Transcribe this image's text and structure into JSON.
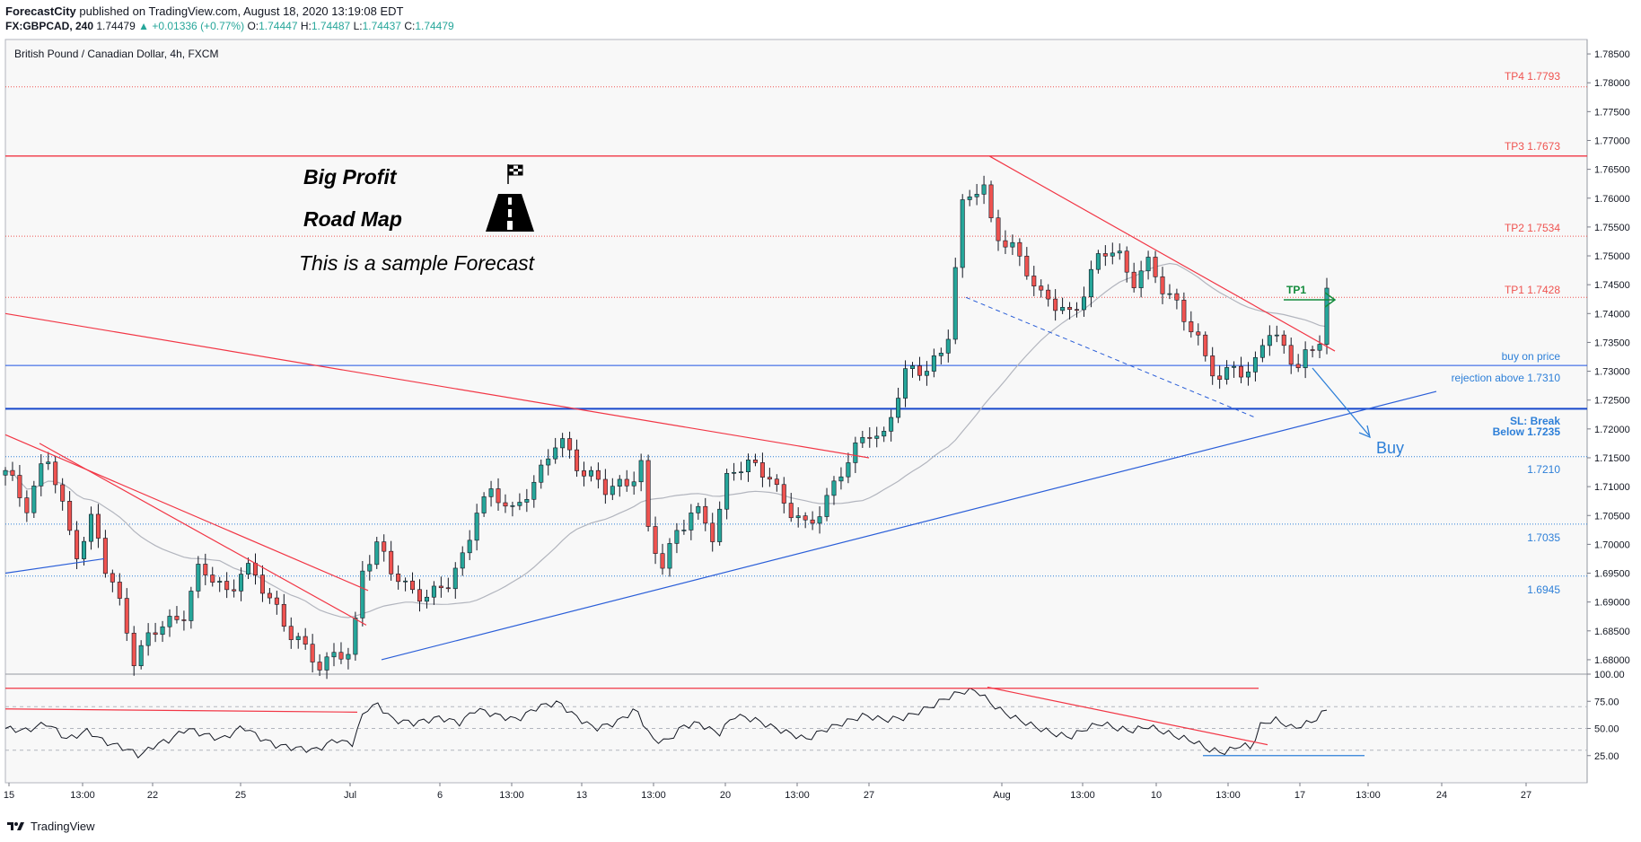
{
  "header": {
    "publisher": "ForecastCity",
    "published_text": "published on TradingView.com, August 18, 2020 13:19:08 EDT",
    "symbol": "FX:GBPCAD, 240",
    "last": "1.74479",
    "change": "+0.01336 (+0.77%)",
    "o": "1.74447",
    "h": "1.74487",
    "l": "1.74437",
    "c": "1.74479"
  },
  "footer": {
    "brand": "TradingView"
  },
  "colors": {
    "up": "#26a69a",
    "down": "#ef5350",
    "red_line": "#f23645",
    "blue_line": "#2962ff",
    "blue_label": "#2d7fd8",
    "green": "#138b3c",
    "ma": "#b2b5be",
    "bg": "#f8f8f8"
  },
  "chart_data": [
    {
      "type": "candlestick",
      "title": "British Pound / Canadian Dollar, 4h, FXCM",
      "ylim": [
        1.6775,
        1.7875
      ],
      "y_ticks": [
        "1.68000",
        "1.68500",
        "1.69000",
        "1.69500",
        "1.70000",
        "1.70500",
        "1.71000",
        "1.71500",
        "1.72000",
        "1.72500",
        "1.73000",
        "1.73500",
        "1.74000",
        "1.74500",
        "1.75000",
        "1.75500",
        "1.76000",
        "1.76500",
        "1.77000",
        "1.77500",
        "1.78000",
        "1.78500"
      ],
      "x_ticks": [
        "15",
        "13:00",
        "22",
        "25",
        "Jul",
        "6",
        "13:00",
        "13",
        "13:00",
        "20",
        "13:00",
        "27",
        "Aug",
        "13:00",
        "10",
        "13:00",
        "17",
        "13:00",
        "24",
        "27"
      ],
      "close_path": [
        [
          0,
          1.712
        ],
        [
          20,
          1.707
        ],
        [
          40,
          1.7155
        ],
        [
          60,
          1.703
        ],
        [
          70,
          1.699
        ],
        [
          85,
          1.705
        ],
        [
          95,
          1.696
        ],
        [
          115,
          1.688
        ],
        [
          125,
          1.68
        ],
        [
          140,
          1.684
        ],
        [
          155,
          1.686
        ],
        [
          175,
          1.689
        ],
        [
          185,
          1.695
        ],
        [
          200,
          1.694
        ],
        [
          215,
          1.692
        ],
        [
          230,
          1.696
        ],
        [
          245,
          1.693
        ],
        [
          260,
          1.69
        ],
        [
          275,
          1.685
        ],
        [
          290,
          1.681
        ],
        [
          305,
          1.679
        ],
        [
          320,
          1.682
        ],
        [
          335,
          1.68
        ],
        [
          345,
          1.695
        ],
        [
          360,
          1.701
        ],
        [
          372,
          1.696
        ],
        [
          390,
          1.691
        ],
        [
          410,
          1.692
        ],
        [
          430,
          1.693
        ],
        [
          445,
          1.698
        ],
        [
          455,
          1.707
        ],
        [
          470,
          1.709
        ],
        [
          490,
          1.705
        ],
        [
          505,
          1.71
        ],
        [
          520,
          1.713
        ],
        [
          535,
          1.718
        ],
        [
          550,
          1.715
        ],
        [
          565,
          1.712
        ],
        [
          580,
          1.709
        ],
        [
          600,
          1.711
        ],
        [
          615,
          1.714
        ],
        [
          622,
          1.701
        ],
        [
          635,
          1.696
        ],
        [
          650,
          1.703
        ],
        [
          665,
          1.706
        ],
        [
          685,
          1.701
        ],
        [
          700,
          1.714
        ],
        [
          720,
          1.713
        ],
        [
          740,
          1.712
        ],
        [
          755,
          1.707
        ],
        [
          775,
          1.702
        ],
        [
          790,
          1.707
        ],
        [
          805,
          1.712
        ],
        [
          820,
          1.715
        ],
        [
          835,
          1.72
        ],
        [
          850,
          1.719
        ],
        [
          860,
          1.724
        ],
        [
          870,
          1.729
        ],
        [
          880,
          1.73
        ],
        [
          895,
          1.732
        ],
        [
          910,
          1.733
        ],
        [
          918,
          1.746
        ],
        [
          925,
          1.758
        ],
        [
          933,
          1.761
        ],
        [
          945,
          1.764
        ],
        [
          952,
          1.756
        ],
        [
          962,
          1.752
        ],
        [
          975,
          1.751
        ],
        [
          990,
          1.748
        ],
        [
          1000,
          1.743
        ],
        [
          1015,
          1.741
        ],
        [
          1030,
          1.74
        ],
        [
          1045,
          1.745
        ],
        [
          1060,
          1.75
        ],
        [
          1075,
          1.751
        ],
        [
          1090,
          1.746
        ],
        [
          1105,
          1.748
        ],
        [
          1120,
          1.744
        ],
        [
          1135,
          1.742
        ],
        [
          1150,
          1.736
        ],
        [
          1162,
          1.731
        ],
        [
          1175,
          1.729
        ],
        [
          1190,
          1.732
        ],
        [
          1200,
          1.728
        ],
        [
          1210,
          1.731
        ],
        [
          1220,
          1.738
        ],
        [
          1235,
          1.735
        ],
        [
          1250,
          1.73
        ],
        [
          1262,
          1.733
        ],
        [
          1270,
          1.735
        ],
        [
          1278,
          1.7448
        ]
      ]
    },
    {
      "type": "line",
      "name": "RSI",
      "ylim": [
        0,
        100
      ],
      "y_ticks": [
        "25.00",
        "50.00",
        "75.00",
        "100.00"
      ],
      "values_path": [
        [
          0,
          50
        ],
        [
          20,
          48
        ],
        [
          40,
          55
        ],
        [
          60,
          40
        ],
        [
          80,
          48
        ],
        [
          95,
          38
        ],
        [
          115,
          32
        ],
        [
          130,
          25
        ],
        [
          145,
          35
        ],
        [
          160,
          40
        ],
        [
          175,
          50
        ],
        [
          190,
          45
        ],
        [
          210,
          40
        ],
        [
          230,
          52
        ],
        [
          245,
          42
        ],
        [
          260,
          35
        ],
        [
          280,
          32
        ],
        [
          300,
          30
        ],
        [
          320,
          40
        ],
        [
          335,
          35
        ],
        [
          348,
          68
        ],
        [
          360,
          72
        ],
        [
          375,
          58
        ],
        [
          395,
          55
        ],
        [
          420,
          60
        ],
        [
          440,
          55
        ],
        [
          455,
          68
        ],
        [
          475,
          62
        ],
        [
          495,
          58
        ],
        [
          515,
          70
        ],
        [
          535,
          74
        ],
        [
          550,
          62
        ],
        [
          570,
          50
        ],
        [
          590,
          55
        ],
        [
          610,
          68
        ],
        [
          625,
          40
        ],
        [
          640,
          38
        ],
        [
          655,
          52
        ],
        [
          670,
          55
        ],
        [
          690,
          45
        ],
        [
          705,
          62
        ],
        [
          725,
          58
        ],
        [
          745,
          50
        ],
        [
          760,
          45
        ],
        [
          775,
          40
        ],
        [
          790,
          48
        ],
        [
          810,
          55
        ],
        [
          830,
          62
        ],
        [
          850,
          58
        ],
        [
          870,
          60
        ],
        [
          895,
          70
        ],
        [
          910,
          78
        ],
        [
          925,
          84
        ],
        [
          940,
          85
        ],
        [
          952,
          74
        ],
        [
          965,
          65
        ],
        [
          980,
          58
        ],
        [
          1000,
          50
        ],
        [
          1015,
          45
        ],
        [
          1030,
          42
        ],
        [
          1045,
          50
        ],
        [
          1060,
          55
        ],
        [
          1075,
          50
        ],
        [
          1090,
          48
        ],
        [
          1105,
          52
        ],
        [
          1120,
          47
        ],
        [
          1135,
          42
        ],
        [
          1150,
          38
        ],
        [
          1165,
          30
        ],
        [
          1180,
          28
        ],
        [
          1195,
          35
        ],
        [
          1205,
          32
        ],
        [
          1215,
          55
        ],
        [
          1230,
          58
        ],
        [
          1245,
          50
        ],
        [
          1260,
          55
        ],
        [
          1270,
          60
        ],
        [
          1278,
          68
        ]
      ]
    }
  ],
  "levels": {
    "tp4": "TP4 1.7793",
    "tp3": "TP3 1.7673",
    "tp2": "TP2 1.7534",
    "tp1": "TP1 1.7428",
    "buy_on_price": "buy on price",
    "rejection": "rejection above 1.7310",
    "sl_line1": "SL: Break",
    "sl_line2": "Below 1.7235",
    "l1": "1.7210",
    "l2": "1.7035",
    "l3": "1.6945"
  },
  "annotations": {
    "big_profit": "Big Profit",
    "road_map": "Road Map",
    "sample": "This is a sample Forecast",
    "tp1_arrow": "TP1",
    "buy": "Buy"
  }
}
